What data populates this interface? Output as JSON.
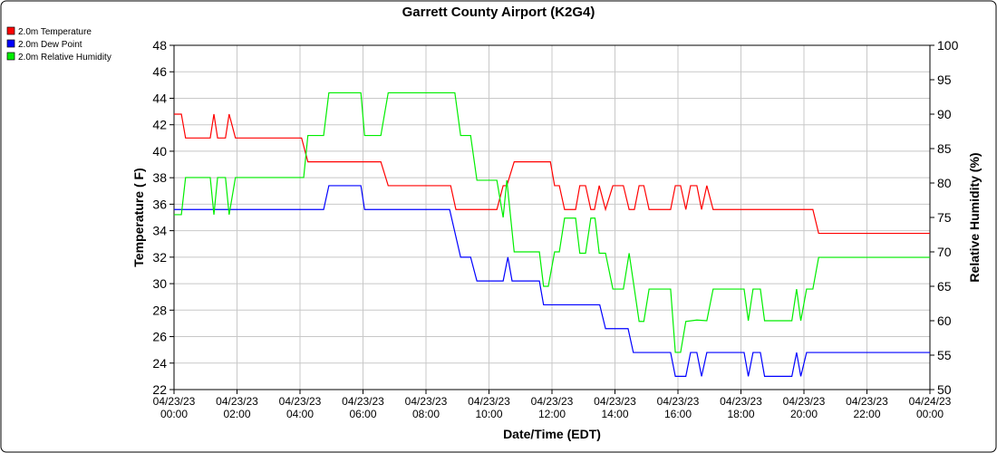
{
  "chart_data": {
    "type": "line",
    "title": "Garrett County Airport (K2G4)",
    "x_label": "Date/Time (EDT)",
    "y_label": "Temperature ( F)",
    "y2_label": "Relative Humidity (%)",
    "xlim": [
      "04/23/23 00:00",
      "04/24/23 00:00"
    ],
    "xticks": [
      {
        "value": "04/23/23 00:00",
        "label": [
          "04/23/23",
          "00:00"
        ]
      },
      {
        "value": "04/23/23 02:00",
        "label": [
          "04/23/23",
          "02:00"
        ]
      },
      {
        "value": "04/23/23 04:00",
        "label": [
          "04/23/23",
          "04:00"
        ]
      },
      {
        "value": "04/23/23 06:00",
        "label": [
          "04/23/23",
          "06:00"
        ]
      },
      {
        "value": "04/23/23 08:00",
        "label": [
          "04/23/23",
          "08:00"
        ]
      },
      {
        "value": "04/23/23 10:00",
        "label": [
          "04/23/23",
          "10:00"
        ]
      },
      {
        "value": "04/23/23 12:00",
        "label": [
          "04/23/23",
          "12:00"
        ]
      },
      {
        "value": "04/23/23 14:00",
        "label": [
          "04/23/23",
          "14:00"
        ]
      },
      {
        "value": "04/23/23 16:00",
        "label": [
          "04/23/23",
          "16:00"
        ]
      },
      {
        "value": "04/23/23 18:00",
        "label": [
          "04/23/23",
          "18:00"
        ]
      },
      {
        "value": "04/23/23 20:00",
        "label": [
          "04/23/23",
          "20:00"
        ]
      },
      {
        "value": "04/23/23 22:00",
        "label": [
          "04/23/23",
          "22:00"
        ]
      },
      {
        "value": "04/24/23 00:00",
        "label": [
          "04/24/23",
          "00:00"
        ]
      }
    ],
    "ylim": [
      22,
      48
    ],
    "yticks": [
      22,
      24,
      26,
      28,
      30,
      32,
      34,
      36,
      38,
      40,
      42,
      44,
      46,
      48
    ],
    "y2lim": [
      50,
      100
    ],
    "y2ticks": [
      50,
      55,
      60,
      65,
      70,
      75,
      80,
      85,
      90,
      95,
      100
    ],
    "grid": true,
    "legend": "top-left",
    "series": [
      {
        "name": "2.0m Temperature",
        "color": "#ff0000",
        "x": [
          "04/23/23 00:00",
          "04/23/23 00:14",
          "04/23/23 00:22",
          "04/23/23 01:09",
          "04/23/23 01:16",
          "04/23/23 01:23",
          "04/23/23 01:38",
          "04/23/23 01:45",
          "04/23/23 01:57",
          "04/23/23 04:03",
          "04/23/23 04:15",
          "04/23/23 06:34",
          "04/23/23 06:48",
          "04/23/23 08:47",
          "04/23/23 08:57",
          "04/23/23 10:15",
          "04/23/23 10:27",
          "04/23/23 10:34",
          "04/23/23 10:48",
          "04/23/23 11:57",
          "04/23/23 12:05",
          "04/23/23 12:14",
          "04/23/23 12:24",
          "04/23/23 12:45",
          "04/23/23 12:53",
          "04/23/23 13:04",
          "04/23/23 13:14",
          "04/23/23 13:21",
          "04/23/23 13:30",
          "04/23/23 13:42",
          "04/23/23 13:56",
          "04/23/23 14:16",
          "04/23/23 14:27",
          "04/23/23 14:37",
          "04/23/23 14:46",
          "04/23/23 14:55",
          "04/23/23 15:05",
          "04/23/23 15:46",
          "04/23/23 15:55",
          "04/23/23 16:05",
          "04/23/23 16:15",
          "04/23/23 16:24",
          "04/23/23 16:36",
          "04/23/23 16:45",
          "04/23/23 16:55",
          "04/23/23 17:07",
          "04/23/23 20:17",
          "04/23/23 20:28",
          "04/24/23 00:00"
        ],
        "values": [
          42.8,
          42.8,
          41,
          41,
          42.8,
          41,
          41,
          42.8,
          41,
          41,
          39.2,
          39.2,
          37.4,
          37.4,
          35.6,
          35.6,
          37.4,
          37.4,
          39.2,
          39.2,
          37.4,
          37.4,
          35.6,
          35.6,
          37.4,
          37.4,
          35.6,
          35.6,
          37.4,
          35.6,
          37.4,
          37.4,
          35.6,
          35.6,
          37.4,
          37.4,
          35.6,
          35.6,
          37.4,
          37.4,
          35.6,
          37.4,
          37.4,
          35.6,
          37.4,
          35.6,
          35.6,
          33.8,
          33.8
        ]
      },
      {
        "name": "2.0m Dew Point",
        "color": "#0000ff",
        "x": [
          "04/23/23 00:00",
          "04/23/23 04:45",
          "04/23/23 04:55",
          "04/23/23 05:56",
          "04/23/23 06:03",
          "04/23/23 08:45",
          "04/23/23 09:06",
          "04/23/23 09:25",
          "04/23/23 09:37",
          "04/23/23 10:27",
          "04/23/23 10:36",
          "04/23/23 10:44",
          "04/23/23 11:36",
          "04/23/23 11:44",
          "04/23/23 13:31",
          "04/23/23 13:42",
          "04/23/23 14:25",
          "04/23/23 14:35",
          "04/23/23 15:46",
          "04/23/23 15:55",
          "04/23/23 16:15",
          "04/23/23 16:24",
          "04/23/23 16:36",
          "04/23/23 16:45",
          "04/23/23 16:55",
          "04/23/23 18:06",
          "04/23/23 18:14",
          "04/23/23 18:23",
          "04/23/23 18:37",
          "04/23/23 18:45",
          "04/23/23 19:37",
          "04/23/23 19:46",
          "04/23/23 19:54",
          "04/23/23 20:05",
          "04/24/23 00:00"
        ],
        "values": [
          35.6,
          35.6,
          37.4,
          37.4,
          35.6,
          35.6,
          32,
          32,
          30.2,
          30.2,
          32,
          30.2,
          30.2,
          28.4,
          28.4,
          26.6,
          26.6,
          24.8,
          24.8,
          23,
          23,
          24.8,
          24.8,
          23,
          24.8,
          24.8,
          23,
          24.8,
          24.8,
          23,
          23,
          24.8,
          23,
          24.8,
          24.8
        ]
      },
      {
        "name": "2.0m Relative Humidity",
        "color": "#00ee00",
        "axis": "y2",
        "x": [
          "04/23/23 00:00",
          "04/23/23 00:14",
          "04/23/23 00:22",
          "04/23/23 01:09",
          "04/23/23 01:16",
          "04/23/23 01:23",
          "04/23/23 01:38",
          "04/23/23 01:45",
          "04/23/23 01:57",
          "04/23/23 04:07",
          "04/23/23 04:15",
          "04/23/23 04:45",
          "04/23/23 04:55",
          "04/23/23 05:56",
          "04/23/23 06:03",
          "04/23/23 06:34",
          "04/23/23 06:48",
          "04/23/23 08:55",
          "04/23/23 09:06",
          "04/23/23 09:25",
          "04/23/23 09:37",
          "04/23/23 10:15",
          "04/23/23 10:27",
          "04/23/23 10:34",
          "04/23/23 10:48",
          "04/23/23 11:36",
          "04/23/23 11:44",
          "04/23/23 11:53",
          "04/23/23 12:05",
          "04/23/23 12:14",
          "04/23/23 12:24",
          "04/23/23 12:45",
          "04/23/23 12:53",
          "04/23/23 13:04",
          "04/23/23 13:14",
          "04/23/23 13:22",
          "04/23/23 13:30",
          "04/23/23 13:42",
          "04/23/23 13:56",
          "04/23/23 14:16",
          "04/23/23 14:27",
          "04/23/23 14:37",
          "04/23/23 14:46",
          "04/23/23 14:55",
          "04/23/23 15:05",
          "04/23/23 15:46",
          "04/23/23 15:55",
          "04/23/23 16:05",
          "04/23/23 16:15",
          "04/23/23 16:36",
          "04/23/23 16:55",
          "04/23/23 17:07",
          "04/23/23 18:06",
          "04/23/23 18:14",
          "04/23/23 18:23",
          "04/23/23 18:37",
          "04/23/23 18:45",
          "04/23/23 19:37",
          "04/23/23 19:46",
          "04/23/23 19:54",
          "04/23/23 20:05",
          "04/23/23 20:17",
          "04/23/23 20:28",
          "04/24/23 00:00"
        ],
        "values": [
          75.4,
          75.4,
          80.8,
          80.8,
          75.4,
          80.8,
          80.8,
          75.4,
          80.8,
          80.8,
          86.9,
          86.9,
          93.1,
          93.1,
          86.9,
          86.9,
          93.1,
          93.1,
          86.9,
          86.9,
          80.4,
          80.4,
          75,
          80.4,
          70,
          70,
          65,
          65,
          70,
          70,
          74.9,
          74.9,
          69.8,
          69.8,
          74.9,
          74.9,
          69.8,
          69.8,
          64.6,
          64.6,
          69.8,
          64.6,
          59.9,
          59.9,
          64.6,
          64.6,
          55.4,
          55.4,
          59.9,
          60.1,
          60,
          64.6,
          64.6,
          60,
          64.6,
          64.6,
          60,
          60,
          64.6,
          60,
          64.6,
          64.6,
          69.2,
          69.2
        ]
      }
    ]
  }
}
